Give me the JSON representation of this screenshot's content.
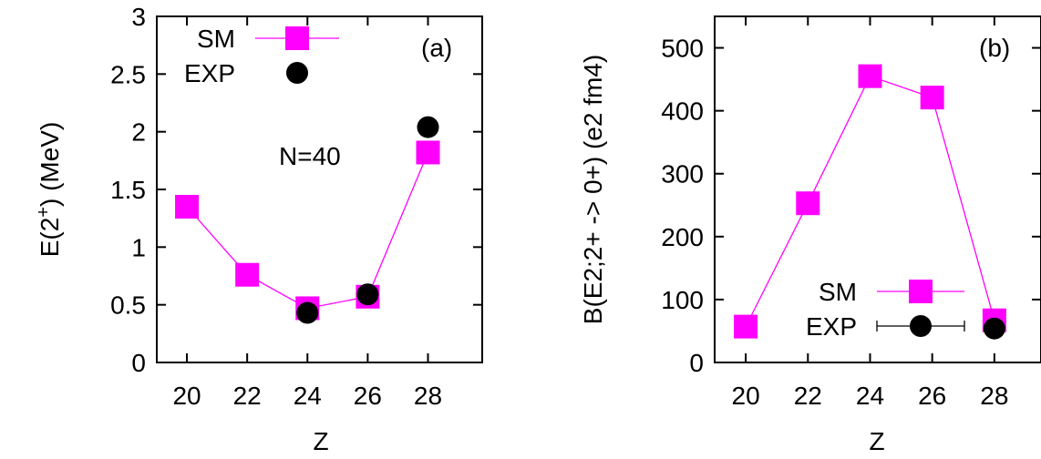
{
  "colors": {
    "sm": "#ff00ff",
    "exp": "#000000",
    "axis": "#000000"
  },
  "chart_data": [
    {
      "type": "line",
      "panel_label": "(a)",
      "annotation": "N=40",
      "xlabel": "Z",
      "ylabel": "E(2+) (MeV)",
      "ylabel_main": "E(2",
      "ylabel_sup": "+",
      "ylabel_tail": ") (MeV)",
      "xlim": [
        19,
        29.8
      ],
      "ylim": [
        0,
        3
      ],
      "xticks": [
        20,
        22,
        24,
        26,
        28
      ],
      "yticks": [
        0,
        0.5,
        1,
        1.5,
        2,
        2.5,
        3
      ],
      "ytick_labels": [
        "0",
        "0.5",
        "1",
        "1.5",
        "2",
        "2.5",
        "3"
      ],
      "legend_position": "top-left",
      "series": [
        {
          "name": "SM",
          "marker": "square",
          "line": true,
          "x": [
            20,
            22,
            24,
            26,
            28
          ],
          "y": [
            1.35,
            0.76,
            0.47,
            0.57,
            1.82
          ]
        },
        {
          "name": "EXP",
          "marker": "circle",
          "line": false,
          "x": [
            24,
            26,
            28
          ],
          "y": [
            0.43,
            0.59,
            2.04
          ]
        }
      ]
    },
    {
      "type": "line",
      "panel_label": "(b)",
      "xlabel": "Z",
      "ylabel": "B(E2;2+ -> 0+) (e2 fm4)",
      "xlim": [
        19,
        29.5
      ],
      "ylim": [
        0,
        550
      ],
      "xticks": [
        20,
        22,
        24,
        26,
        28
      ],
      "yticks": [
        0,
        100,
        200,
        300,
        400,
        500
      ],
      "ytick_labels": [
        "0",
        "100",
        "200",
        "300",
        "400",
        "500"
      ],
      "legend_position": "bottom-right",
      "series": [
        {
          "name": "SM",
          "marker": "square",
          "line": true,
          "x": [
            20,
            22,
            24,
            26,
            28
          ],
          "y": [
            57,
            253,
            455,
            421,
            67
          ]
        },
        {
          "name": "EXP",
          "marker": "circle",
          "line": false,
          "errorbars": true,
          "x": [
            28
          ],
          "y": [
            54
          ]
        }
      ]
    }
  ]
}
